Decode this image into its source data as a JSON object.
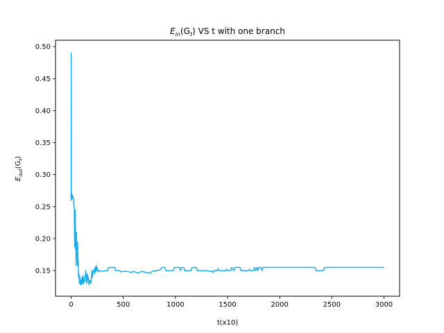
{
  "chart_data": {
    "type": "line",
    "title": {
      "main": "E",
      "sub": "in",
      "paren_open": "(G",
      "paren_sub": "t",
      "rest": ") VS t with one branch"
    },
    "xlabel": "t(x10)",
    "ylabel": {
      "main": "E",
      "sub": "out",
      "paren_open": "(G",
      "paren_sub": "t",
      "paren_close": ")"
    },
    "xlim": [
      -150,
      3150
    ],
    "ylim": [
      0.11,
      0.51
    ],
    "xticks": [
      0,
      500,
      1000,
      1500,
      2000,
      2500,
      3000
    ],
    "xtick_labels": [
      "0",
      "500",
      "1000",
      "1500",
      "2000",
      "2500",
      "3000"
    ],
    "yticks": [
      0.15,
      0.2,
      0.25,
      0.3,
      0.35,
      0.4,
      0.45,
      0.5
    ],
    "ytick_labels": [
      "0.15",
      "0.20",
      "0.25",
      "0.30",
      "0.35",
      "0.40",
      "0.45",
      "0.50"
    ],
    "grid": false,
    "series": [
      {
        "color": "#1aaee8",
        "points": [
          [
            0,
            0.26
          ],
          [
            1,
            0.49
          ],
          [
            2,
            0.26
          ],
          [
            5,
            0.27
          ],
          [
            8,
            0.262
          ],
          [
            12,
            0.268
          ],
          [
            15,
            0.265
          ],
          [
            20,
            0.265
          ],
          [
            25,
            0.252
          ],
          [
            30,
            0.25
          ],
          [
            32,
            0.21
          ],
          [
            34,
            0.188
          ],
          [
            36,
            0.23
          ],
          [
            38,
            0.185
          ],
          [
            40,
            0.245
          ],
          [
            42,
            0.19
          ],
          [
            45,
            0.2
          ],
          [
            47,
            0.158
          ],
          [
            50,
            0.21
          ],
          [
            52,
            0.17
          ],
          [
            55,
            0.19
          ],
          [
            58,
            0.18
          ],
          [
            60,
            0.158
          ],
          [
            62,
            0.195
          ],
          [
            65,
            0.16
          ],
          [
            68,
            0.165
          ],
          [
            70,
            0.14
          ],
          [
            75,
            0.145
          ],
          [
            80,
            0.13
          ],
          [
            85,
            0.14
          ],
          [
            90,
            0.128
          ],
          [
            95,
            0.135
          ],
          [
            100,
            0.128
          ],
          [
            105,
            0.14
          ],
          [
            110,
            0.13
          ],
          [
            115,
            0.142
          ],
          [
            120,
            0.13
          ],
          [
            125,
            0.137
          ],
          [
            130,
            0.133
          ],
          [
            140,
            0.15
          ],
          [
            145,
            0.14
          ],
          [
            150,
            0.13
          ],
          [
            155,
            0.145
          ],
          [
            160,
            0.135
          ],
          [
            165,
            0.14
          ],
          [
            170,
            0.128
          ],
          [
            180,
            0.135
          ],
          [
            190,
            0.13
          ],
          [
            200,
            0.15
          ],
          [
            205,
            0.14
          ],
          [
            210,
            0.148
          ],
          [
            220,
            0.152
          ],
          [
            225,
            0.145
          ],
          [
            230,
            0.155
          ],
          [
            235,
            0.148
          ],
          [
            240,
            0.158
          ],
          [
            245,
            0.15
          ],
          [
            250,
            0.155
          ],
          [
            260,
            0.148
          ],
          [
            270,
            0.15
          ],
          [
            300,
            0.149
          ],
          [
            350,
            0.15
          ],
          [
            360,
            0.155
          ],
          [
            420,
            0.155
          ],
          [
            425,
            0.15
          ],
          [
            470,
            0.15
          ],
          [
            475,
            0.148
          ],
          [
            520,
            0.149
          ],
          [
            560,
            0.148
          ],
          [
            580,
            0.147
          ],
          [
            600,
            0.149
          ],
          [
            640,
            0.146
          ],
          [
            680,
            0.149
          ],
          [
            720,
            0.147
          ],
          [
            760,
            0.146
          ],
          [
            780,
            0.149
          ],
          [
            820,
            0.15
          ],
          [
            860,
            0.152
          ],
          [
            870,
            0.155
          ],
          [
            900,
            0.155
          ],
          [
            910,
            0.15
          ],
          [
            980,
            0.15
          ],
          [
            990,
            0.155
          ],
          [
            1040,
            0.155
          ],
          [
            1050,
            0.15
          ],
          [
            1060,
            0.155
          ],
          [
            1080,
            0.155
          ],
          [
            1090,
            0.15
          ],
          [
            1150,
            0.15
          ],
          [
            1160,
            0.155
          ],
          [
            1200,
            0.155
          ],
          [
            1210,
            0.15
          ],
          [
            1280,
            0.15
          ],
          [
            1350,
            0.149
          ],
          [
            1360,
            0.147
          ],
          [
            1370,
            0.15
          ],
          [
            1400,
            0.15
          ],
          [
            1410,
            0.153
          ],
          [
            1420,
            0.15
          ],
          [
            1480,
            0.15
          ],
          [
            1490,
            0.152
          ],
          [
            1500,
            0.15
          ],
          [
            1530,
            0.15
          ],
          [
            1540,
            0.155
          ],
          [
            1560,
            0.15
          ],
          [
            1570,
            0.155
          ],
          [
            1620,
            0.155
          ],
          [
            1630,
            0.15
          ],
          [
            1700,
            0.15
          ],
          [
            1710,
            0.152
          ],
          [
            1720,
            0.15
          ],
          [
            1750,
            0.15
          ],
          [
            1760,
            0.155
          ],
          [
            1770,
            0.15
          ],
          [
            1780,
            0.155
          ],
          [
            1790,
            0.15
          ],
          [
            1800,
            0.155
          ],
          [
            1820,
            0.155
          ],
          [
            1830,
            0.15
          ],
          [
            1840,
            0.155
          ],
          [
            2340,
            0.155
          ],
          [
            2350,
            0.15
          ],
          [
            2420,
            0.15
          ],
          [
            2430,
            0.155
          ],
          [
            3000,
            0.155
          ]
        ]
      }
    ]
  }
}
